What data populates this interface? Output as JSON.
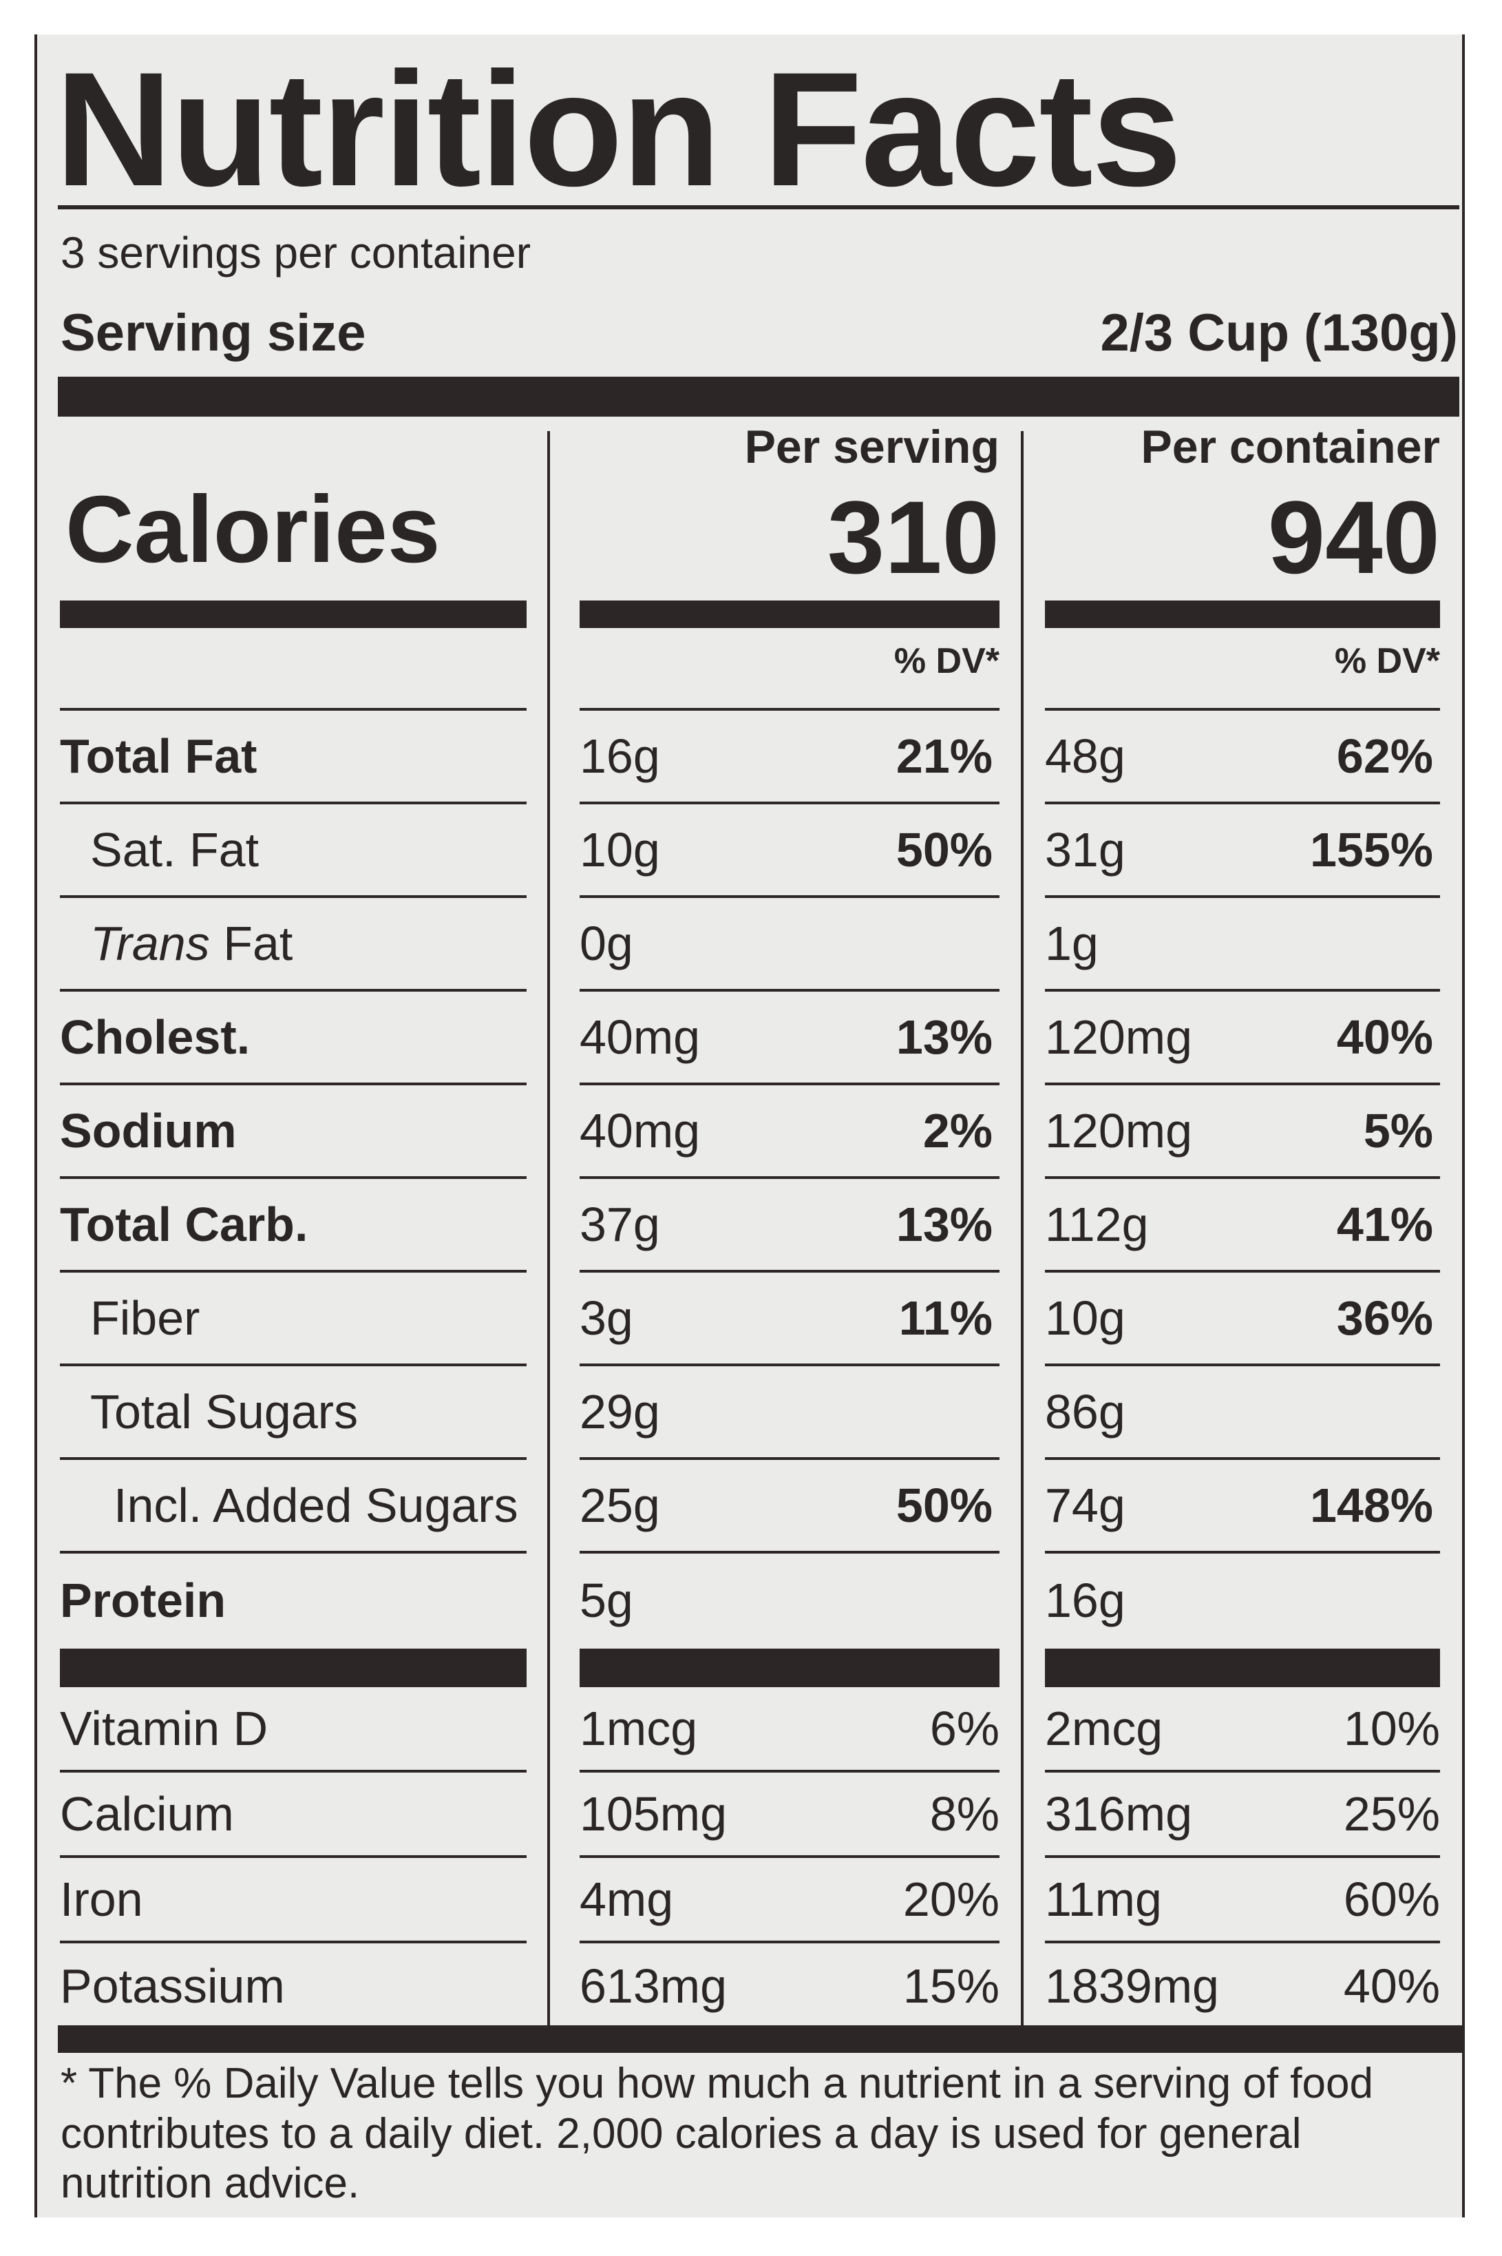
{
  "title": "Nutrition Facts",
  "servings_per_container": "3 servings per container",
  "serving_size": {
    "label": "Serving size",
    "value": "2/3 Cup (130g)"
  },
  "calories_label": "Calories",
  "columns": [
    {
      "header": "Per serving",
      "calories": "310",
      "dv_header": "% DV*"
    },
    {
      "header": "Per container",
      "calories": "940",
      "dv_header": "% DV*"
    }
  ],
  "nutrients": [
    {
      "label": "Total Fat",
      "bold": true,
      "indent": 0,
      "serving": {
        "amount": "16g",
        "dv": "21%"
      },
      "container": {
        "amount": "48g",
        "dv": "62%"
      }
    },
    {
      "label": "Sat. Fat",
      "bold": false,
      "indent": 1,
      "serving": {
        "amount": "10g",
        "dv": "50%"
      },
      "container": {
        "amount": "31g",
        "dv": "155%"
      }
    },
    {
      "label_italic": "Trans",
      "label": " Fat",
      "bold": false,
      "indent": 1,
      "serving": {
        "amount": "0g",
        "dv": ""
      },
      "container": {
        "amount": "1g",
        "dv": ""
      }
    },
    {
      "label": "Cholest.",
      "bold": true,
      "indent": 0,
      "serving": {
        "amount": "40mg",
        "dv": "13%"
      },
      "container": {
        "amount": "120mg",
        "dv": "40%"
      }
    },
    {
      "label": "Sodium",
      "bold": true,
      "indent": 0,
      "serving": {
        "amount": "40mg",
        "dv": "2%"
      },
      "container": {
        "amount": "120mg",
        "dv": "5%"
      }
    },
    {
      "label": "Total Carb.",
      "bold": true,
      "indent": 0,
      "serving": {
        "amount": "37g",
        "dv": "13%"
      },
      "container": {
        "amount": "112g",
        "dv": "41%"
      }
    },
    {
      "label": "Fiber",
      "bold": false,
      "indent": 1,
      "serving": {
        "amount": "3g",
        "dv": "11%"
      },
      "container": {
        "amount": "10g",
        "dv": "36%"
      }
    },
    {
      "label": "Total Sugars",
      "bold": false,
      "indent": 1,
      "serving": {
        "amount": "29g",
        "dv": ""
      },
      "container": {
        "amount": "86g",
        "dv": ""
      }
    },
    {
      "label": "Incl. Added Sugars",
      "bold": false,
      "indent": 2,
      "serving": {
        "amount": "25g",
        "dv": "50%"
      },
      "container": {
        "amount": "74g",
        "dv": "148%"
      }
    },
    {
      "label": "Protein",
      "bold": true,
      "indent": 0,
      "serving": {
        "amount": "5g",
        "dv": ""
      },
      "container": {
        "amount": "16g",
        "dv": ""
      }
    }
  ],
  "vitamins": [
    {
      "label": "Vitamin D",
      "serving": {
        "amount": "1mcg",
        "dv": "6%"
      },
      "container": {
        "amount": "2mcg",
        "dv": "10%"
      }
    },
    {
      "label": "Calcium",
      "serving": {
        "amount": "105mg",
        "dv": "8%"
      },
      "container": {
        "amount": "316mg",
        "dv": "25%"
      }
    },
    {
      "label": "Iron",
      "serving": {
        "amount": "4mg",
        "dv": "20%"
      },
      "container": {
        "amount": "11mg",
        "dv": "60%"
      }
    },
    {
      "label": "Potassium",
      "serving": {
        "amount": "613mg",
        "dv": "15%"
      },
      "container": {
        "amount": "1839mg",
        "dv": "40%"
      }
    }
  ],
  "footnote": "* The % Daily Value tells you how much a nutrient in a serving of food contributes to a daily diet. 2,000 calories a day is used for general nutrition advice.",
  "colors": {
    "ink": "#2c2626",
    "label_background": "#ebebe9"
  }
}
